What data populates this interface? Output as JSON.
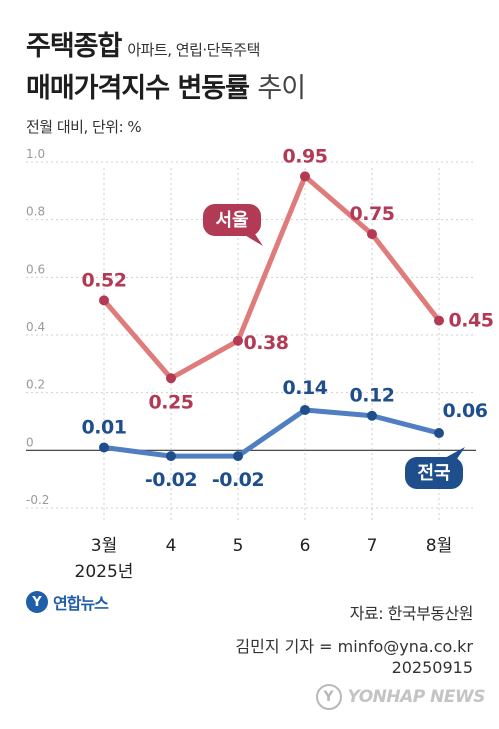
{
  "header": {
    "title_line1": "주택종합",
    "title_line1_sub": "아파트, 연립·단독주택",
    "title_line2": "매매가격지수 변동률",
    "title_line2_tail": "추이",
    "unit_note": "전월 대비, 단위: %"
  },
  "chart_data": {
    "type": "line",
    "categories": [
      "3월",
      "4",
      "5",
      "6",
      "7",
      "8월"
    ],
    "category_year": "2025년",
    "ylim": [
      -0.2,
      1.0
    ],
    "y_ticks": [
      "1.0",
      "0.8",
      "0.6",
      "0.4",
      "0.2",
      "0",
      "-0.2"
    ],
    "y_tick_values": [
      1.0,
      0.8,
      0.6,
      0.4,
      0.2,
      0,
      -0.2
    ],
    "grid": "horizontal dashed",
    "series": [
      {
        "name": "서울",
        "color": "#e07b7b",
        "label_color": "#b33a55",
        "badge_color": "#b33a55",
        "values": [
          0.52,
          0.25,
          0.38,
          0.95,
          0.75,
          0.45
        ],
        "value_labels": [
          "0.52",
          "0.25",
          "0.38",
          "0.95",
          "0.75",
          "0.45"
        ]
      },
      {
        "name": "전국",
        "color": "#4f7fc2",
        "label_color": "#1f4e8c",
        "badge_color": "#1f4e8c",
        "values": [
          0.01,
          -0.02,
          -0.02,
          0.14,
          0.12,
          0.06
        ],
        "value_labels": [
          "0.01",
          "-0.02",
          "-0.02",
          "0.14",
          "0.12",
          "0.06"
        ]
      }
    ]
  },
  "footer": {
    "logo_text": "연합뉴스",
    "logo_mark": "Y",
    "source": "자료: 한국부동산원",
    "credit_line1": "김민지 기자 = minfo@yna.co.kr",
    "credit_line2": "20250915",
    "watermark_text": "YONHAP NEWS",
    "watermark_mark": "Y"
  }
}
